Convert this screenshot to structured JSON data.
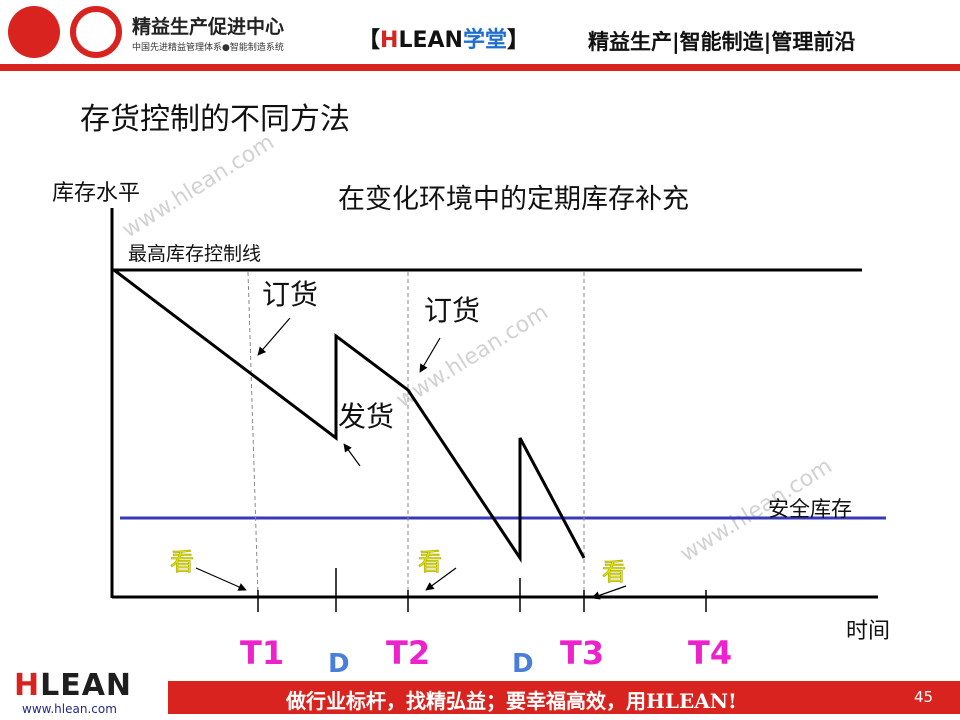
{
  "header": {
    "brand_name": "精益生产促进中心",
    "brand_sub": "中国先进精益管理体系●智能制造系统",
    "academy_open": "【",
    "academy_h": "H",
    "academy_lean": "LEAN",
    "academy_cn": "学堂",
    "academy_close": "】",
    "tagline": "精益生产|智能制造|管理前沿"
  },
  "slide": {
    "title": "存货控制的不同方法",
    "diagram_title": "在变化环境中的定期库存补充"
  },
  "diagram": {
    "y_axis_label": "库存水平",
    "x_axis_label": "时间",
    "max_line_label": "最高库存控制线",
    "safety_label": "安全库存",
    "order_label_1": "订货",
    "order_label_2": "订货",
    "ship_label": "发货",
    "look_label_1": "看",
    "look_label_2": "看",
    "look_label_3": "看",
    "ticks": [
      "T1",
      "D",
      "T2",
      "D",
      "T3",
      "T4"
    ],
    "colors": {
      "axis": "#000000",
      "safety_line": "#3a3ab8",
      "tick_label": "#ee22cc",
      "d_label": "#4a7fd8",
      "look": "#e8e800"
    }
  },
  "watermark": "www.hlean.com",
  "footer": {
    "logo_h": "H",
    "logo_rest": "LEAN",
    "url": "www.hlean.com",
    "slogan": "做行业标杆，找精弘益；要幸福高效，用HLEAN!",
    "page_number": "45"
  }
}
